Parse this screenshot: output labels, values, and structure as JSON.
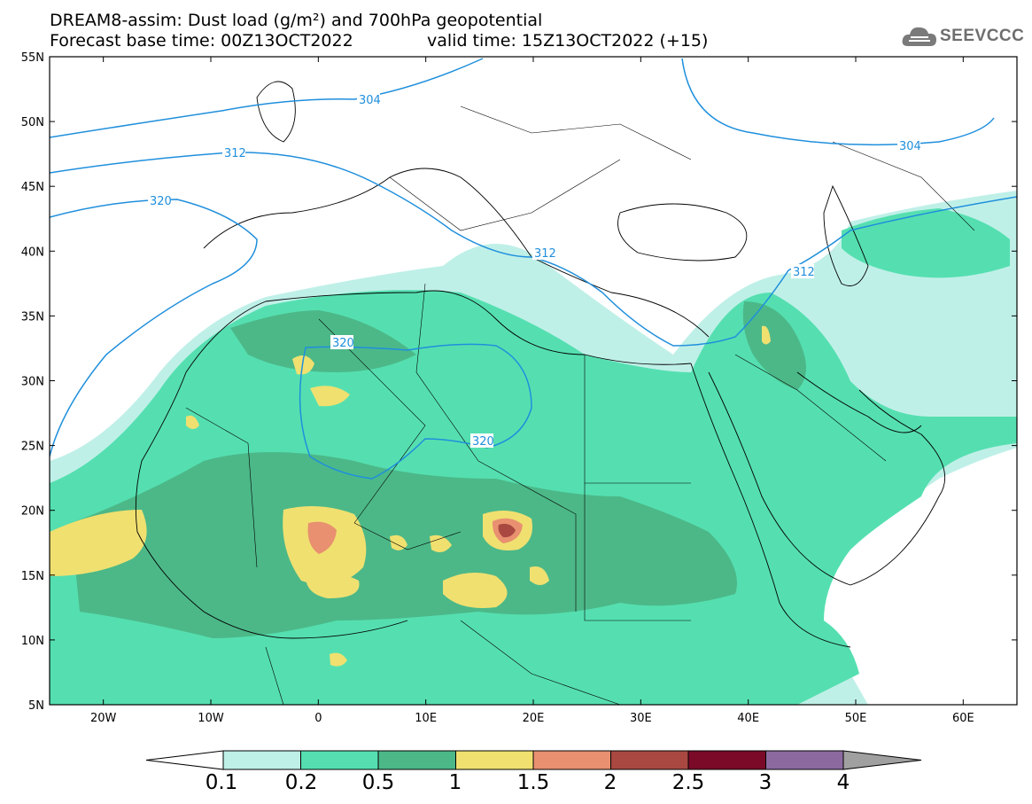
{
  "title": {
    "line1": "DREAM8-assim: Dust load (g/m²) and 700hPa geopotential",
    "line2_left": "Forecast base time: 00Z13OCT2022",
    "line2_right": "valid time: 15Z13OCT2022 (+15)"
  },
  "logo": {
    "text": "SEEVCCC",
    "icon": "cloud-logo-icon"
  },
  "axes": {
    "lat_labels": [
      "55N",
      "50N",
      "45N",
      "40N",
      "35N",
      "30N",
      "25N",
      "20N",
      "15N",
      "10N",
      "5N"
    ],
    "lon_labels": [
      "20W",
      "10W",
      "0",
      "10E",
      "20E",
      "30E",
      "40E",
      "50E",
      "60E"
    ],
    "lat_range": [
      5,
      55
    ],
    "lon_range": [
      -25,
      65
    ]
  },
  "contours": {
    "labels": [
      "304",
      "312",
      "320",
      "312",
      "320",
      "312",
      "320",
      "304"
    ],
    "color": "#1f8fdc"
  },
  "colorbar": {
    "labels": [
      "0.1",
      "0.2",
      "0.5",
      "1",
      "1.5",
      "2",
      "2.5",
      "3",
      "4"
    ],
    "colors": [
      "#ffffff",
      "#bff0e8",
      "#55dfb0",
      "#4cb888",
      "#f0e070",
      "#e89070",
      "#a84840",
      "#7a0a28",
      "#8c6aa0",
      "#a0a0a0"
    ]
  },
  "legend_colors": {
    "c01": "#bff0e8",
    "c02": "#55dfb0",
    "c05": "#4cb888",
    "c10": "#f0e070",
    "c15": "#e89070",
    "c20": "#a84840"
  }
}
